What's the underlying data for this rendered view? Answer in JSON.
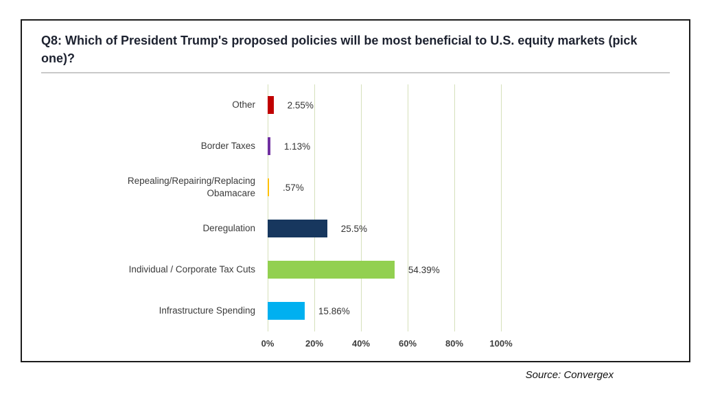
{
  "source_note": "Source: Convergex",
  "chart_data": {
    "type": "bar",
    "orientation": "horizontal",
    "title": "Q8: Which of President Trump's proposed policies will be most beneficial to U.S. equity markets (pick one)?",
    "categories": [
      "Other",
      "Border Taxes",
      "Repealing/Repairing/Replacing Obamacare",
      "Deregulation",
      "Individual / Corporate Tax Cuts",
      "Infrastructure Spending"
    ],
    "values": [
      2.55,
      1.13,
      0.57,
      25.5,
      54.39,
      15.86
    ],
    "value_labels": [
      "2.55%",
      "1.13%",
      ".57%",
      "25.5%",
      "54.39%",
      "15.86%"
    ],
    "bar_colors": [
      "#c00000",
      "#7030a0",
      "#ffc000",
      "#17375e",
      "#92d050",
      "#00b0f0"
    ],
    "x_ticks": [
      "0%",
      "20%",
      "40%",
      "60%",
      "80%",
      "100%"
    ],
    "xlim": [
      0,
      100
    ],
    "xlabel": "",
    "ylabel": "",
    "gridline_color": "#d5e0ba",
    "legend": "none",
    "grid": "vertical"
  }
}
